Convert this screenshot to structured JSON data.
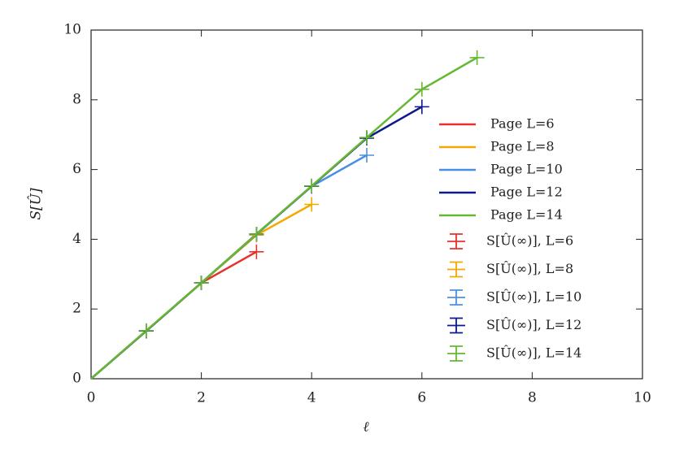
{
  "chart_data": {
    "type": "line",
    "x_label": "ℓ",
    "y_label": "S[Û]",
    "x": [
      0,
      1,
      2,
      3,
      4,
      5,
      6,
      7
    ],
    "xlim": [
      0,
      10
    ],
    "ylim": [
      0,
      10
    ],
    "xticks": [
      0,
      2,
      4,
      6,
      8,
      10
    ],
    "yticks": [
      0,
      2,
      4,
      6,
      8,
      10
    ],
    "series": [
      {
        "name": "Page L=6",
        "color": "#e8312b",
        "mode": "line",
        "values": [
          0,
          1.37,
          2.75,
          3.64,
          null,
          null,
          null,
          null
        ]
      },
      {
        "name": "Page L=8",
        "color": "#f5a800",
        "mode": "line",
        "values": [
          0,
          1.37,
          2.75,
          4.12,
          5.0,
          null,
          null,
          null
        ]
      },
      {
        "name": "Page L=10",
        "color": "#4a90e2",
        "mode": "line",
        "values": [
          0,
          1.37,
          2.75,
          4.14,
          5.52,
          6.41,
          null,
          null
        ]
      },
      {
        "name": "Page L=12",
        "color": "#0c1a8c",
        "mode": "line",
        "values": [
          0,
          1.37,
          2.75,
          4.15,
          5.52,
          6.9,
          7.8,
          null
        ]
      },
      {
        "name": "Page L=14",
        "color": "#66b832",
        "mode": "line",
        "values": [
          0,
          1.38,
          2.75,
          4.15,
          5.53,
          6.92,
          8.3,
          9.21
        ]
      },
      {
        "name": "S[Û(∞)], L=6",
        "color": "#e8312b",
        "mode": "errorbar",
        "values": [
          null,
          1.37,
          2.75,
          3.64,
          null,
          null,
          null,
          null
        ]
      },
      {
        "name": "S[Û(∞)], L=8",
        "color": "#f5a800",
        "mode": "errorbar",
        "values": [
          null,
          1.37,
          2.75,
          4.12,
          5.0,
          null,
          null,
          null
        ]
      },
      {
        "name": "S[Û(∞)], L=10",
        "color": "#4a90e2",
        "mode": "errorbar",
        "values": [
          null,
          1.37,
          2.75,
          4.14,
          5.52,
          6.41,
          null,
          null
        ]
      },
      {
        "name": "S[Û(∞)], L=12",
        "color": "#0c1a8c",
        "mode": "errorbar",
        "values": [
          null,
          1.37,
          2.75,
          4.15,
          5.52,
          6.9,
          7.8,
          null
        ]
      },
      {
        "name": "S[Û(∞)], L=14",
        "color": "#66b832",
        "mode": "errorbar",
        "values": [
          null,
          1.38,
          2.75,
          4.15,
          5.53,
          6.92,
          8.3,
          9.21
        ]
      }
    ]
  }
}
